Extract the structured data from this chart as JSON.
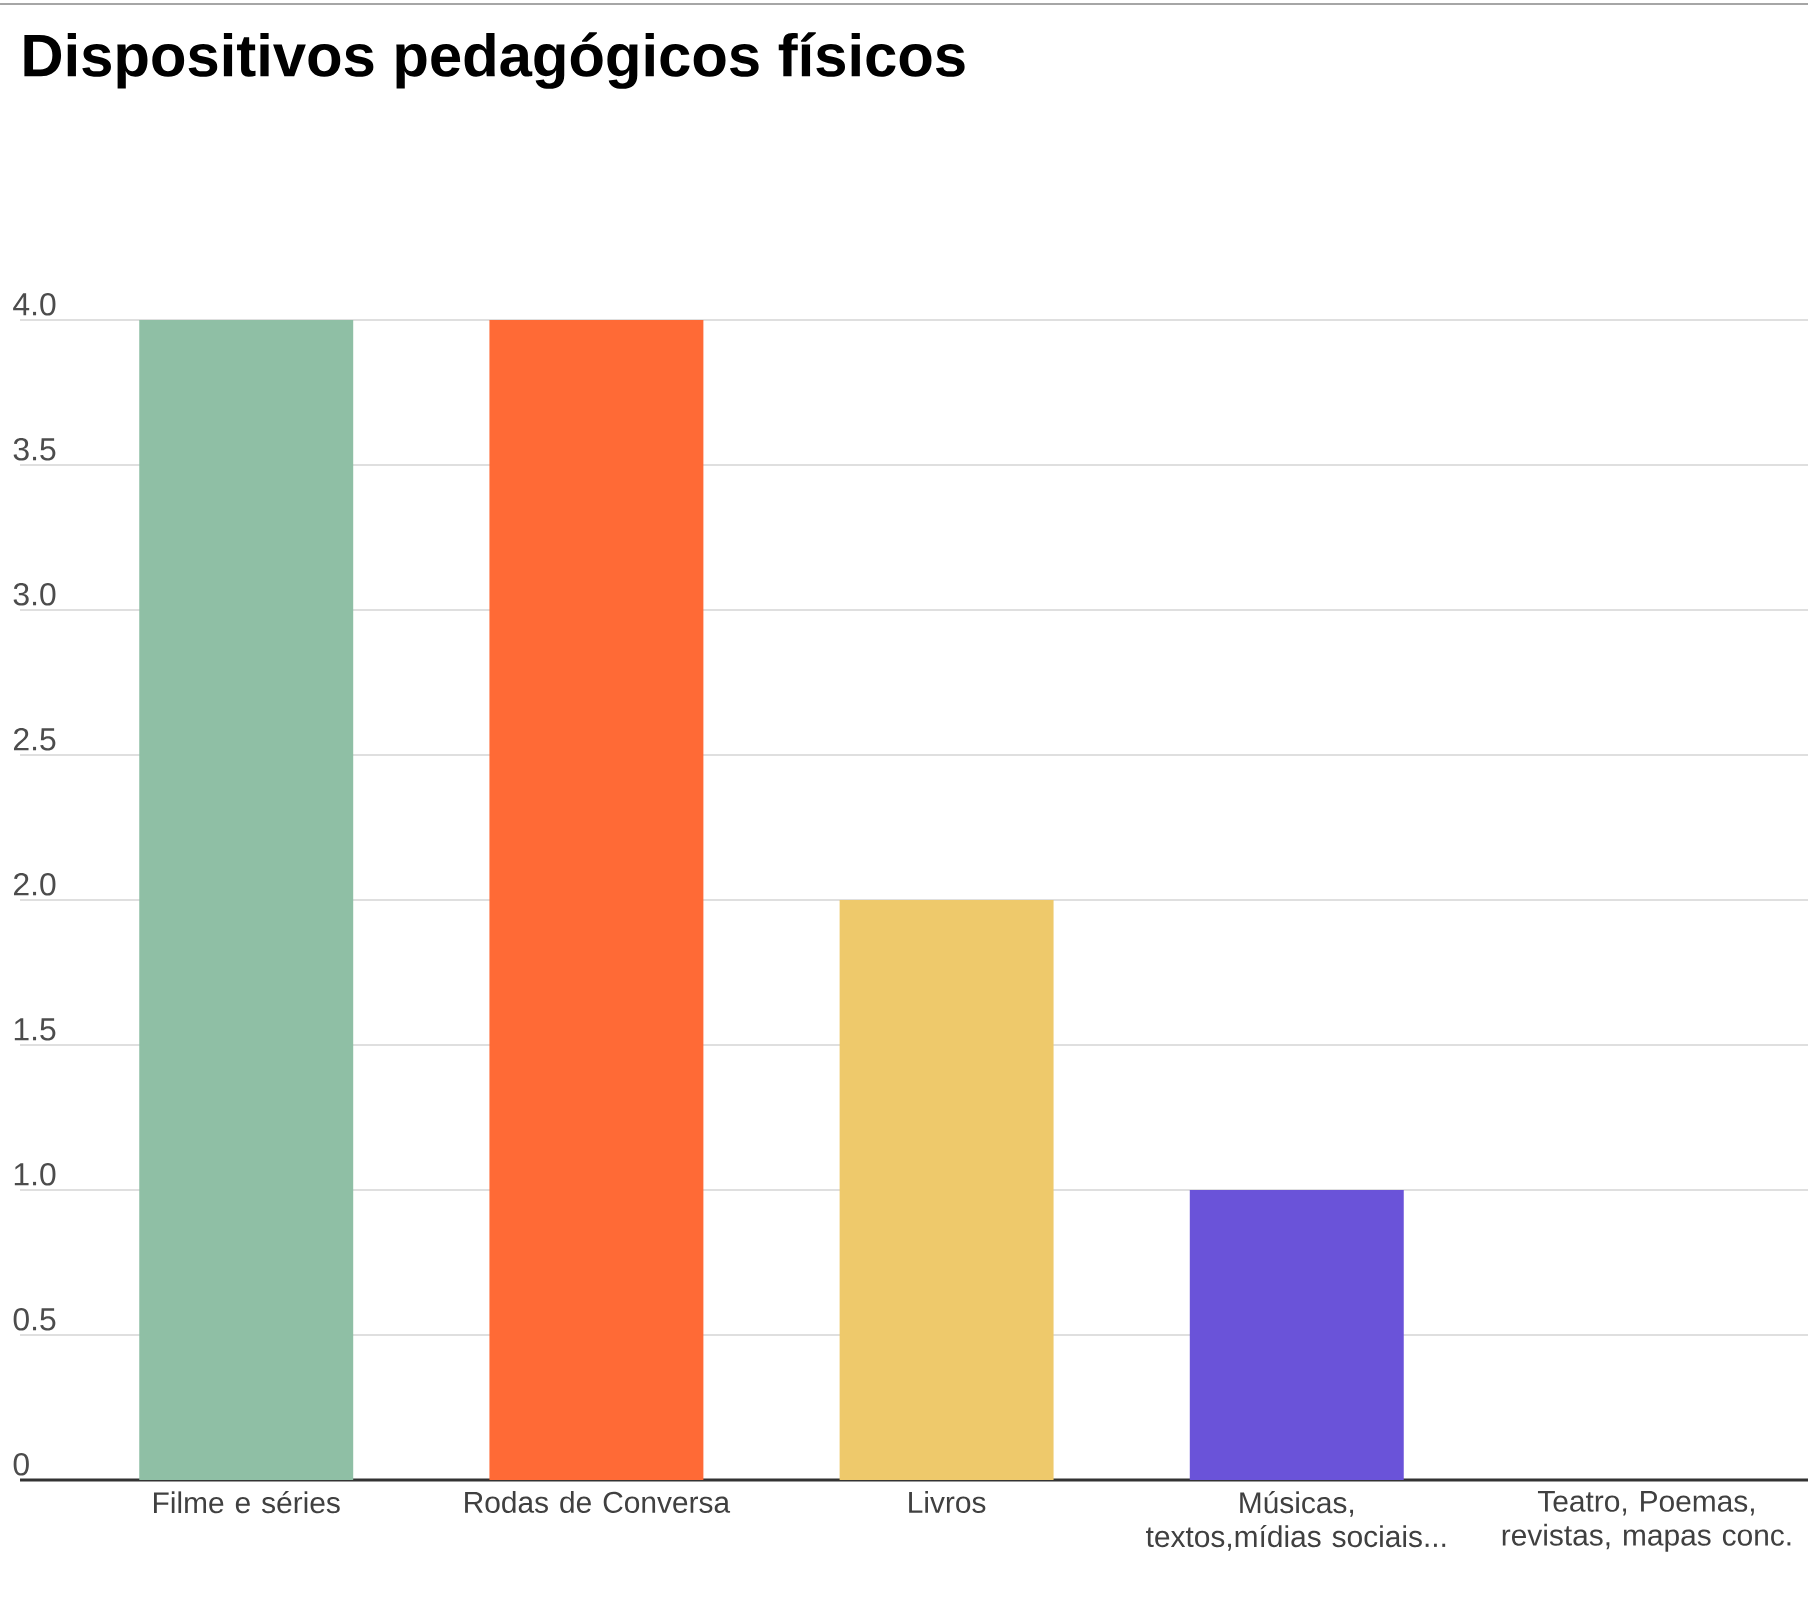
{
  "chart_data": {
    "type": "bar",
    "title": "Dispositivos pedagógicos físicos",
    "categories": [
      "Filme e séries",
      "Rodas de Conversa",
      "Livros",
      "Músicas, textos,mídias sociais...",
      "Teatro, Poemas, revistas, mapas conc."
    ],
    "values": [
      4,
      4,
      2,
      1,
      0
    ],
    "colors": [
      "#8fbfa5",
      "#ff6a36",
      "#eec96b",
      "#6a53d9",
      "#4db6ac"
    ],
    "ylim": [
      0,
      4
    ],
    "yticks": [
      0,
      0.5,
      {
        "value": 1,
        "label": "1.0"
      },
      1.5,
      {
        "value": 2,
        "label": "2.0"
      },
      2.5,
      {
        "value": 3,
        "label": "3.0"
      },
      3.5,
      {
        "value": 4,
        "label": "4.0"
      }
    ],
    "grid": "y"
  }
}
